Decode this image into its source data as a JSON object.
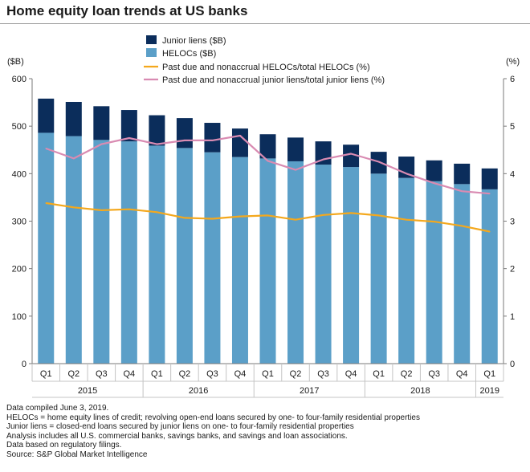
{
  "title": "Home equity loan trends at US banks",
  "chart_data": {
    "type": "bar",
    "categories": [
      "Q1",
      "Q2",
      "Q3",
      "Q4",
      "Q1",
      "Q2",
      "Q3",
      "Q4",
      "Q1",
      "Q2",
      "Q3",
      "Q4",
      "Q1",
      "Q2",
      "Q3",
      "Q4",
      "Q1"
    ],
    "years": [
      {
        "label": "2015",
        "count": 4
      },
      {
        "label": "2016",
        "count": 4
      },
      {
        "label": "2017",
        "count": 4
      },
      {
        "label": "2018",
        "count": 4
      },
      {
        "label": "2019",
        "count": 1
      }
    ],
    "series": [
      {
        "name": "Junior liens ($B)",
        "type": "stacked-bar",
        "axis": "left",
        "color": "#0b2d5b",
        "values": [
          72,
          72,
          71,
          66,
          64,
          63,
          62,
          60,
          51,
          50,
          49,
          47,
          46,
          45,
          44,
          43,
          44
        ]
      },
      {
        "name": "HELOCs ($B)",
        "type": "stacked-bar",
        "axis": "left",
        "color": "#5b9fc8",
        "values": [
          486,
          479,
          471,
          468,
          459,
          454,
          445,
          435,
          432,
          426,
          419,
          414,
          400,
          391,
          384,
          378,
          367
        ]
      },
      {
        "name": "Past due and nonaccrual HELOCs/total HELOCs (%)",
        "type": "line",
        "axis": "right",
        "color": "#f4a81d",
        "values": [
          3.38,
          3.29,
          3.23,
          3.25,
          3.19,
          3.07,
          3.05,
          3.1,
          3.12,
          3.03,
          3.13,
          3.17,
          3.12,
          3.03,
          2.99,
          2.9,
          2.78
        ]
      },
      {
        "name": "Past due and nonaccrual junior liens/total junior liens (%)",
        "type": "line",
        "axis": "right",
        "color": "#d98bb2",
        "values": [
          4.53,
          4.32,
          4.62,
          4.75,
          4.62,
          4.7,
          4.7,
          4.8,
          4.27,
          4.08,
          4.3,
          4.42,
          4.25,
          4.0,
          3.8,
          3.63,
          3.58
        ]
      }
    ],
    "left_axis": {
      "label": "($B)",
      "ylim": [
        0,
        600
      ],
      "ticks": [
        "0",
        "100",
        "200",
        "300",
        "400",
        "500",
        "600"
      ]
    },
    "right_axis": {
      "label": "(%)",
      "ylim": [
        0,
        6
      ],
      "ticks": [
        "0",
        "1",
        "2",
        "3",
        "4",
        "5",
        "6"
      ]
    },
    "legend_placement": "top-center"
  },
  "footnotes": [
    "Data compiled June 3, 2019.",
    "HELOCs = home equity lines of credit; revolving open-end loans secured by one- to four-family residential properties",
    "Junior liens = closed-end loans secured by junior liens on one- to four-family residential properties",
    "Analysis includes all U.S. commercial banks, savings banks, and savings and loan associations.",
    "Data based on regulatory filings.",
    "Source: S&P Global Market Intelligence"
  ]
}
